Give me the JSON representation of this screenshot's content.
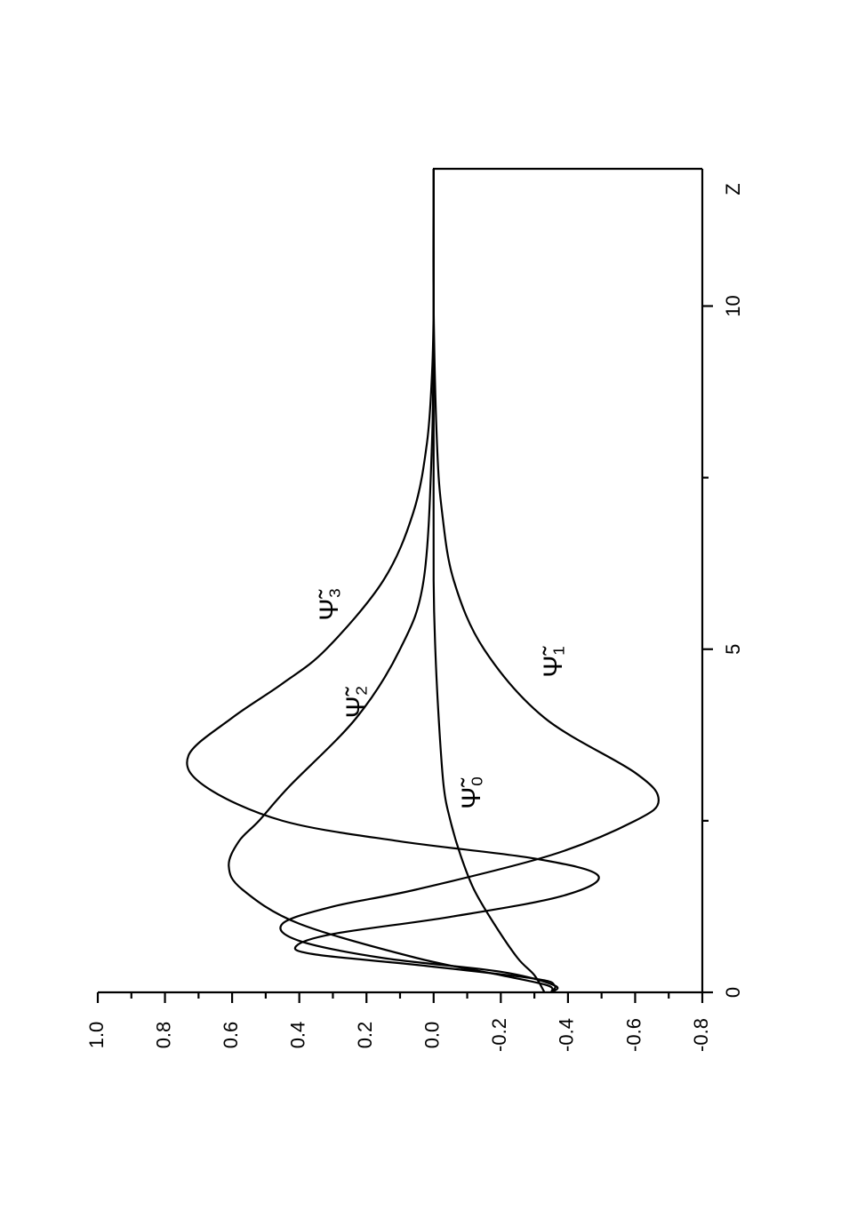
{
  "chart_data": {
    "type": "line",
    "xlabel": "Z",
    "xlim": [
      0,
      12
    ],
    "xticks": [
      0,
      5,
      10
    ],
    "xminor": [
      2.5,
      7.5
    ],
    "ylim": [
      -0.8,
      1.0
    ],
    "yticks": [
      {
        "value": 1,
        "label": "1.0"
      },
      0.8,
      0.6,
      0.4,
      0.2,
      {
        "value": 0,
        "label": "0.0"
      },
      -0.2,
      -0.4,
      -0.6,
      -0.8
    ],
    "yminor": [
      0.9,
      0.7,
      0.5,
      0.3,
      0.1,
      -0.1,
      -0.3,
      -0.5,
      -0.7
    ],
    "series": [
      {
        "name": "Ψ̃₀",
        "color": "#000000",
        "x": [
          0,
          0.25,
          0.5,
          1,
          1.5,
          2,
          2.5,
          3,
          4,
          5,
          6,
          8,
          10,
          12
        ],
        "values": [
          -0.33,
          -0.3,
          -0.25,
          -0.18,
          -0.12,
          -0.08,
          -0.05,
          -0.03,
          -0.015,
          -0.005,
          0,
          0,
          0,
          0
        ]
      },
      {
        "name": "Ψ̃₁",
        "color": "#000000",
        "x": [
          0,
          0.1,
          0.3,
          0.5,
          0.75,
          1,
          1.25,
          1.5,
          2,
          2.5,
          2.8,
          3.2,
          4,
          5,
          6,
          7,
          8,
          10,
          12
        ],
        "values": [
          -0.35,
          -0.36,
          -0.2,
          0.15,
          0.4,
          0.45,
          0.3,
          0.05,
          -0.35,
          -0.6,
          -0.67,
          -0.6,
          -0.33,
          -0.15,
          -0.06,
          -0.025,
          -0.01,
          0,
          0
        ]
      },
      {
        "name": "Ψ̃₂",
        "color": "#000000",
        "x": [
          0,
          0.1,
          0.25,
          0.5,
          1,
          1.5,
          1.84,
          2.2,
          2.5,
          3,
          4,
          5,
          6,
          8,
          10,
          12
        ],
        "values": [
          -0.35,
          -0.34,
          -0.2,
          0.05,
          0.4,
          0.57,
          0.61,
          0.58,
          0.52,
          0.43,
          0.23,
          0.1,
          0.03,
          0.005,
          0,
          0
        ]
      },
      {
        "name": "Ψ̃₃",
        "color": "#000000",
        "x": [
          0,
          0.1,
          0.2,
          0.4,
          0.55,
          0.67,
          0.85,
          1.1,
          1.4,
          1.7,
          1.95,
          2.2,
          2.5,
          3,
          3.45,
          4,
          4.5,
          5,
          6,
          7,
          8,
          9,
          10,
          12
        ],
        "values": [
          -0.35,
          -0.36,
          -0.3,
          0.05,
          0.35,
          0.41,
          0.3,
          -0.05,
          -0.38,
          -0.49,
          -0.3,
          0.1,
          0.45,
          0.68,
          0.73,
          0.6,
          0.45,
          0.32,
          0.15,
          0.06,
          0.02,
          0.005,
          0,
          0
        ]
      }
    ]
  }
}
